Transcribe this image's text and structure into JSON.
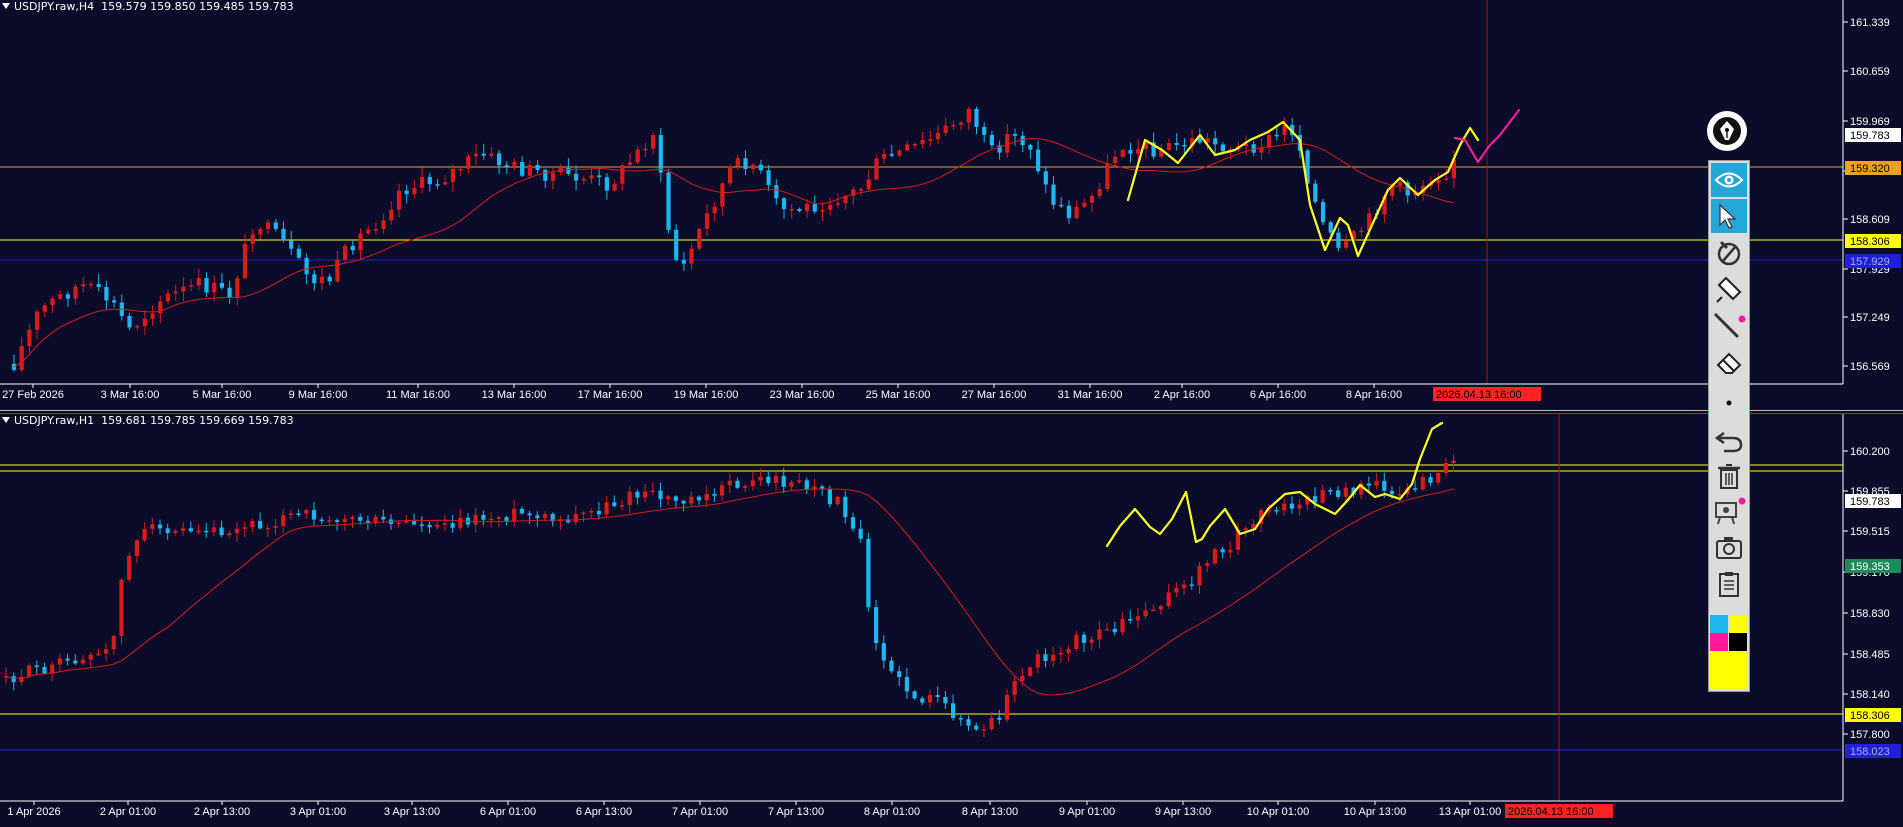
{
  "colors": {
    "background": "#0b0c2a",
    "bull_candle": "#d81b1b",
    "bear_candle": "#1fb6f0",
    "moving_average": "#d81b1b",
    "grid_text": "#ffffff",
    "orange_level": "#f0a020",
    "yellow_level": "#ffff00",
    "blue_level": "#2020d8",
    "drawing_yellow": "#ffff22",
    "drawing_magenta": "#ff1a9c",
    "vline": "#9b1515",
    "tag_red": "#ff2222",
    "current_price_tag": "#ffffff"
  },
  "top_chart": {
    "header": "USDJPY.raw,H4  159.579 159.850 159.485 159.783",
    "price_labels": [
      "161.339",
      "160.659",
      "159.969",
      "159.320",
      "158.609",
      "158.306",
      "157.929",
      "157.249",
      "156.569"
    ],
    "tags": {
      "current": "159.783",
      "orange": "159.320",
      "yellow": "158.306",
      "blue": "157.929"
    },
    "time_labels": [
      "27 Feb 2026",
      "3 Mar 16:00",
      "5 Mar 16:00",
      "9 Mar 16:00",
      "11 Mar 16:00",
      "13 Mar 16:00",
      "17 Mar 16:00",
      "19 Mar 16:00",
      "23 Mar 16:00",
      "25 Mar 16:00",
      "27 Mar 16:00",
      "31 Mar 16:00",
      "2 Apr 16:00",
      "6 Apr 16:00",
      "8 Apr 16:00"
    ],
    "crosshair_time": "2026.04.13 16:00"
  },
  "bottom_chart": {
    "header": "USDJPY.raw,H1  159.681 159.785 159.669 159.783",
    "price_labels": [
      "160.200",
      "159.855",
      "159.515",
      "159.170",
      "158.830",
      "158.485",
      "158.140",
      "157.800"
    ],
    "tags": {
      "current": "159.783",
      "green": "159.353",
      "yellow": "158.306",
      "blue": "158.023"
    },
    "time_labels": [
      "1 Apr 2026",
      "2 Apr 01:00",
      "2 Apr 13:00",
      "3 Apr 01:00",
      "3 Apr 13:00",
      "6 Apr 01:00",
      "6 Apr 13:00",
      "7 Apr 01:00",
      "7 Apr 13:00",
      "8 Apr 01:00",
      "8 Apr 13:00",
      "9 Apr 01:00",
      "9 Apr 13:00",
      "10 Apr 01:00",
      "10 Apr 13:00",
      "13 Apr 01:00"
    ],
    "crosshair_time": "2026.04.13 16:00"
  },
  "toolbar": {
    "tools": [
      "eye-icon",
      "cursor-icon",
      "no-draw-icon",
      "marker-icon",
      "line-icon",
      "eraser-icon",
      "dot-icon",
      "undo-icon",
      "trash-icon",
      "projector-icon",
      "camera-icon",
      "clipboard-icon"
    ],
    "palette": [
      "#1fb6f0",
      "#ffff00",
      "#ff1a9c",
      "#000000",
      "#ffff00"
    ]
  }
}
